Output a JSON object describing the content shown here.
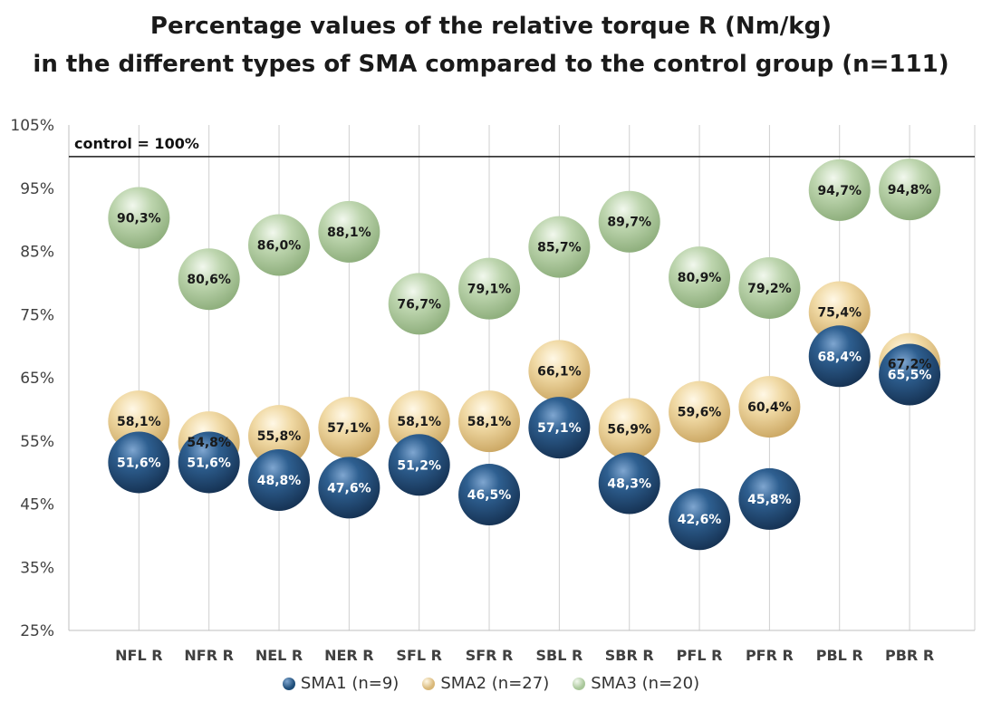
{
  "chart_data": {
    "type": "scatter",
    "title_line1": "Percentage values of the relative torque R (Nm/kg)",
    "title_line2": "in the different types of SMA compared to the control group (n=111)",
    "categories": [
      "NFL R",
      "NFR R",
      "NEL R",
      "NER R",
      "SFL R",
      "SFR R",
      "SBL R",
      "SBR R",
      "PFL R",
      "PFR R",
      "PBL R",
      "PBR R"
    ],
    "y_ticks": [
      "25%",
      "35%",
      "45%",
      "55%",
      "65%",
      "75%",
      "85%",
      "95%",
      "105%"
    ],
    "ylim": [
      25,
      105
    ],
    "control": {
      "value": 100,
      "label": "control = 100%"
    },
    "series": [
      {
        "name": "SMA1 (n=9)",
        "color": "#1f4e79",
        "values": [
          51.6,
          51.6,
          48.8,
          47.6,
          51.2,
          46.5,
          57.1,
          48.3,
          42.6,
          45.8,
          68.4,
          65.5
        ],
        "labels": [
          "51,6%",
          "51,6%",
          "48,8%",
          "47,6%",
          "51,2%",
          "46,5%",
          "57,1%",
          "48,3%",
          "42,6%",
          "45,8%",
          "68,4%",
          "65,5%"
        ]
      },
      {
        "name": "SMA2 (n=27)",
        "color": "#e6c98a",
        "values": [
          58.1,
          54.8,
          55.8,
          57.1,
          58.1,
          58.1,
          66.1,
          56.9,
          59.6,
          60.4,
          75.4,
          67.2
        ],
        "labels": [
          "58,1%",
          "54,8%",
          "55,8%",
          "57,1%",
          "58,1%",
          "58,1%",
          "66,1%",
          "56,9%",
          "59,6%",
          "60,4%",
          "75,4%",
          "67,2%"
        ]
      },
      {
        "name": "SMA3 (n=20)",
        "color": "#a9c79a",
        "values": [
          90.3,
          80.6,
          86.0,
          88.1,
          76.7,
          79.1,
          85.7,
          89.7,
          80.9,
          79.2,
          94.7,
          94.8
        ],
        "labels": [
          "90,3%",
          "80,6%",
          "86,0%",
          "88,1%",
          "76,7%",
          "79,1%",
          "85,7%",
          "89,7%",
          "80,9%",
          "79,2%",
          "94,7%",
          "94,8%"
        ]
      }
    ]
  }
}
